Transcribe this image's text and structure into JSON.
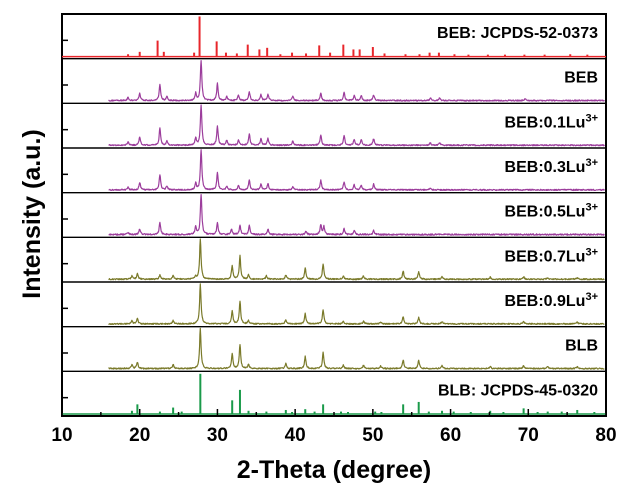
{
  "chart_data": {
    "type": "line",
    "title": "",
    "xlabel": "2-Theta (degree)",
    "ylabel": "Intensity (a.u.)",
    "xlim": [
      10,
      80
    ],
    "xticks": [
      10,
      20,
      30,
      40,
      50,
      60,
      70,
      80
    ],
    "y_tick_labels": "none",
    "grid": false,
    "legend": "none",
    "series": [
      {
        "label": "BEB: JCPDS-52-0373",
        "style": "reference-sticks",
        "color": "#e8262b",
        "peaks": [
          {
            "x": 18.5,
            "i": 0.06
          },
          {
            "x": 20.0,
            "i": 0.12
          },
          {
            "x": 22.3,
            "i": 0.4
          },
          {
            "x": 23.1,
            "i": 0.12
          },
          {
            "x": 27.0,
            "i": 0.1
          },
          {
            "x": 27.7,
            "i": 1.0
          },
          {
            "x": 29.9,
            "i": 0.38
          },
          {
            "x": 31.1,
            "i": 0.1
          },
          {
            "x": 32.5,
            "i": 0.08
          },
          {
            "x": 33.9,
            "i": 0.3
          },
          {
            "x": 35.4,
            "i": 0.18
          },
          {
            "x": 36.4,
            "i": 0.22
          },
          {
            "x": 38.1,
            "i": 0.06
          },
          {
            "x": 39.6,
            "i": 0.1
          },
          {
            "x": 41.4,
            "i": 0.08
          },
          {
            "x": 43.1,
            "i": 0.28
          },
          {
            "x": 44.5,
            "i": 0.1
          },
          {
            "x": 46.2,
            "i": 0.3
          },
          {
            "x": 47.5,
            "i": 0.18
          },
          {
            "x": 48.3,
            "i": 0.18
          },
          {
            "x": 50.0,
            "i": 0.24
          },
          {
            "x": 51.5,
            "i": 0.08
          },
          {
            "x": 54.2,
            "i": 0.06
          },
          {
            "x": 56.0,
            "i": 0.06
          },
          {
            "x": 57.3,
            "i": 0.1
          },
          {
            "x": 58.5,
            "i": 0.1
          },
          {
            "x": 60.5,
            "i": 0.06
          },
          {
            "x": 62.3,
            "i": 0.05
          },
          {
            "x": 64.8,
            "i": 0.05
          },
          {
            "x": 67.0,
            "i": 0.05
          },
          {
            "x": 69.5,
            "i": 0.05
          },
          {
            "x": 72.1,
            "i": 0.05
          },
          {
            "x": 75.4,
            "i": 0.06
          },
          {
            "x": 77.6,
            "i": 0.05
          }
        ]
      },
      {
        "label": "BEB",
        "style": "pattern",
        "color": "#9c3d9c",
        "noise": 0.03,
        "peaks": [
          {
            "x": 18.5,
            "i": 0.08
          },
          {
            "x": 20.0,
            "i": 0.18
          },
          {
            "x": 22.6,
            "i": 0.4
          },
          {
            "x": 23.5,
            "i": 0.1
          },
          {
            "x": 27.2,
            "i": 0.18
          },
          {
            "x": 27.9,
            "i": 1.0
          },
          {
            "x": 30.0,
            "i": 0.42
          },
          {
            "x": 31.2,
            "i": 0.1
          },
          {
            "x": 32.7,
            "i": 0.12
          },
          {
            "x": 34.1,
            "i": 0.22
          },
          {
            "x": 35.6,
            "i": 0.15
          },
          {
            "x": 36.5,
            "i": 0.16
          },
          {
            "x": 39.7,
            "i": 0.1
          },
          {
            "x": 43.3,
            "i": 0.18
          },
          {
            "x": 46.3,
            "i": 0.2
          },
          {
            "x": 47.6,
            "i": 0.12
          },
          {
            "x": 48.5,
            "i": 0.12
          },
          {
            "x": 50.1,
            "i": 0.14
          },
          {
            "x": 57.4,
            "i": 0.06
          },
          {
            "x": 58.6,
            "i": 0.06
          },
          {
            "x": 69.6,
            "i": 0.04
          }
        ]
      },
      {
        "label": "BEB:0.1Lu",
        "label_superscript": "3+",
        "style": "pattern",
        "color": "#9c3d9c",
        "noise": 0.03,
        "peaks": [
          {
            "x": 18.5,
            "i": 0.08
          },
          {
            "x": 20.0,
            "i": 0.2
          },
          {
            "x": 22.6,
            "i": 0.42
          },
          {
            "x": 23.5,
            "i": 0.1
          },
          {
            "x": 27.2,
            "i": 0.18
          },
          {
            "x": 27.9,
            "i": 1.0
          },
          {
            "x": 30.0,
            "i": 0.48
          },
          {
            "x": 31.2,
            "i": 0.12
          },
          {
            "x": 32.7,
            "i": 0.12
          },
          {
            "x": 34.1,
            "i": 0.28
          },
          {
            "x": 35.6,
            "i": 0.16
          },
          {
            "x": 36.5,
            "i": 0.18
          },
          {
            "x": 39.7,
            "i": 0.1
          },
          {
            "x": 43.3,
            "i": 0.26
          },
          {
            "x": 46.3,
            "i": 0.24
          },
          {
            "x": 47.6,
            "i": 0.14
          },
          {
            "x": 48.5,
            "i": 0.14
          },
          {
            "x": 50.1,
            "i": 0.16
          },
          {
            "x": 57.4,
            "i": 0.06
          },
          {
            "x": 58.6,
            "i": 0.06
          }
        ]
      },
      {
        "label": "BEB:0.3Lu",
        "label_superscript": "3+",
        "style": "pattern",
        "color": "#9c3d9c",
        "noise": 0.03,
        "peaks": [
          {
            "x": 18.5,
            "i": 0.06
          },
          {
            "x": 20.0,
            "i": 0.18
          },
          {
            "x": 22.6,
            "i": 0.38
          },
          {
            "x": 23.5,
            "i": 0.1
          },
          {
            "x": 27.2,
            "i": 0.16
          },
          {
            "x": 27.9,
            "i": 1.0
          },
          {
            "x": 30.0,
            "i": 0.42
          },
          {
            "x": 31.2,
            "i": 0.1
          },
          {
            "x": 32.7,
            "i": 0.1
          },
          {
            "x": 34.1,
            "i": 0.24
          },
          {
            "x": 35.6,
            "i": 0.14
          },
          {
            "x": 36.5,
            "i": 0.16
          },
          {
            "x": 39.7,
            "i": 0.08
          },
          {
            "x": 43.3,
            "i": 0.24
          },
          {
            "x": 46.3,
            "i": 0.2
          },
          {
            "x": 47.6,
            "i": 0.12
          },
          {
            "x": 48.5,
            "i": 0.12
          },
          {
            "x": 50.1,
            "i": 0.14
          },
          {
            "x": 57.4,
            "i": 0.05
          }
        ]
      },
      {
        "label": "BEB:0.5Lu",
        "label_superscript": "3+",
        "style": "pattern",
        "color": "#9c3d9c",
        "noise": 0.035,
        "peaks": [
          {
            "x": 18.5,
            "i": 0.06
          },
          {
            "x": 20.0,
            "i": 0.14
          },
          {
            "x": 22.6,
            "i": 0.3
          },
          {
            "x": 27.2,
            "i": 0.2
          },
          {
            "x": 27.9,
            "i": 1.0
          },
          {
            "x": 30.0,
            "i": 0.3
          },
          {
            "x": 31.8,
            "i": 0.14
          },
          {
            "x": 32.9,
            "i": 0.24
          },
          {
            "x": 34.1,
            "i": 0.22
          },
          {
            "x": 36.5,
            "i": 0.14
          },
          {
            "x": 41.4,
            "i": 0.08
          },
          {
            "x": 43.3,
            "i": 0.24
          },
          {
            "x": 43.7,
            "i": 0.2
          },
          {
            "x": 46.3,
            "i": 0.14
          },
          {
            "x": 47.6,
            "i": 0.1
          },
          {
            "x": 50.1,
            "i": 0.1
          }
        ]
      },
      {
        "label": "BEB:0.7Lu",
        "label_superscript": "3+",
        "style": "pattern",
        "color": "#7a7a2a",
        "noise": 0.03,
        "peaks": [
          {
            "x": 19.0,
            "i": 0.08
          },
          {
            "x": 19.7,
            "i": 0.14
          },
          {
            "x": 22.6,
            "i": 0.1
          },
          {
            "x": 24.3,
            "i": 0.1
          },
          {
            "x": 27.2,
            "i": 0.06
          },
          {
            "x": 27.8,
            "i": 1.0
          },
          {
            "x": 31.9,
            "i": 0.34
          },
          {
            "x": 32.9,
            "i": 0.58
          },
          {
            "x": 34.0,
            "i": 0.1
          },
          {
            "x": 36.3,
            "i": 0.08
          },
          {
            "x": 38.8,
            "i": 0.1
          },
          {
            "x": 41.3,
            "i": 0.28
          },
          {
            "x": 43.6,
            "i": 0.38
          },
          {
            "x": 46.2,
            "i": 0.08
          },
          {
            "x": 48.8,
            "i": 0.08
          },
          {
            "x": 53.9,
            "i": 0.2
          },
          {
            "x": 55.9,
            "i": 0.18
          },
          {
            "x": 58.9,
            "i": 0.06
          },
          {
            "x": 65.1,
            "i": 0.05
          },
          {
            "x": 69.4,
            "i": 0.06
          },
          {
            "x": 72.5,
            "i": 0.04
          },
          {
            "x": 76.3,
            "i": 0.04
          }
        ]
      },
      {
        "label": "BEB:0.9Lu",
        "label_superscript": "3+",
        "style": "pattern",
        "color": "#7a7a2a",
        "noise": 0.03,
        "peaks": [
          {
            "x": 19.0,
            "i": 0.08
          },
          {
            "x": 19.7,
            "i": 0.14
          },
          {
            "x": 24.3,
            "i": 0.08
          },
          {
            "x": 27.8,
            "i": 1.0
          },
          {
            "x": 31.9,
            "i": 0.32
          },
          {
            "x": 32.9,
            "i": 0.56
          },
          {
            "x": 34.0,
            "i": 0.08
          },
          {
            "x": 38.8,
            "i": 0.1
          },
          {
            "x": 41.3,
            "i": 0.26
          },
          {
            "x": 43.6,
            "i": 0.36
          },
          {
            "x": 46.2,
            "i": 0.06
          },
          {
            "x": 48.8,
            "i": 0.06
          },
          {
            "x": 51.0,
            "i": 0.05
          },
          {
            "x": 53.9,
            "i": 0.18
          },
          {
            "x": 55.9,
            "i": 0.16
          },
          {
            "x": 58.9,
            "i": 0.06
          },
          {
            "x": 69.4,
            "i": 0.05
          },
          {
            "x": 76.3,
            "i": 0.04
          }
        ]
      },
      {
        "label": "BLB",
        "style": "pattern",
        "color": "#7a7a2a",
        "noise": 0.03,
        "peaks": [
          {
            "x": 19.0,
            "i": 0.1
          },
          {
            "x": 19.7,
            "i": 0.16
          },
          {
            "x": 24.3,
            "i": 0.1
          },
          {
            "x": 27.8,
            "i": 1.0
          },
          {
            "x": 31.9,
            "i": 0.36
          },
          {
            "x": 32.9,
            "i": 0.6
          },
          {
            "x": 34.0,
            "i": 0.1
          },
          {
            "x": 38.8,
            "i": 0.12
          },
          {
            "x": 41.3,
            "i": 0.3
          },
          {
            "x": 43.6,
            "i": 0.4
          },
          {
            "x": 46.2,
            "i": 0.08
          },
          {
            "x": 48.8,
            "i": 0.08
          },
          {
            "x": 51.0,
            "i": 0.06
          },
          {
            "x": 53.9,
            "i": 0.22
          },
          {
            "x": 55.9,
            "i": 0.2
          },
          {
            "x": 58.9,
            "i": 0.08
          },
          {
            "x": 65.1,
            "i": 0.05
          },
          {
            "x": 69.4,
            "i": 0.07
          },
          {
            "x": 72.5,
            "i": 0.05
          },
          {
            "x": 76.3,
            "i": 0.05
          }
        ]
      },
      {
        "label": "BLB: JCPDS-45-0320",
        "style": "reference-sticks",
        "color": "#1a9a4a",
        "peaks": [
          {
            "x": 19.0,
            "i": 0.08
          },
          {
            "x": 19.7,
            "i": 0.24
          },
          {
            "x": 22.6,
            "i": 0.06
          },
          {
            "x": 24.3,
            "i": 0.16
          },
          {
            "x": 25.4,
            "i": 0.06
          },
          {
            "x": 27.8,
            "i": 1.0
          },
          {
            "x": 31.9,
            "i": 0.34
          },
          {
            "x": 32.9,
            "i": 0.6
          },
          {
            "x": 34.0,
            "i": 0.08
          },
          {
            "x": 36.3,
            "i": 0.06
          },
          {
            "x": 38.8,
            "i": 0.1
          },
          {
            "x": 39.6,
            "i": 0.05
          },
          {
            "x": 41.3,
            "i": 0.12
          },
          {
            "x": 42.5,
            "i": 0.06
          },
          {
            "x": 43.6,
            "i": 0.24
          },
          {
            "x": 45.9,
            "i": 0.06
          },
          {
            "x": 46.8,
            "i": 0.05
          },
          {
            "x": 50.3,
            "i": 0.06
          },
          {
            "x": 51.1,
            "i": 0.05
          },
          {
            "x": 53.9,
            "i": 0.24
          },
          {
            "x": 55.9,
            "i": 0.3
          },
          {
            "x": 57.2,
            "i": 0.06
          },
          {
            "x": 58.9,
            "i": 0.08
          },
          {
            "x": 60.4,
            "i": 0.06
          },
          {
            "x": 62.6,
            "i": 0.05
          },
          {
            "x": 65.1,
            "i": 0.08
          },
          {
            "x": 66.8,
            "i": 0.05
          },
          {
            "x": 69.4,
            "i": 0.14
          },
          {
            "x": 71.2,
            "i": 0.05
          },
          {
            "x": 72.5,
            "i": 0.06
          },
          {
            "x": 74.3,
            "i": 0.06
          },
          {
            "x": 76.3,
            "i": 0.1
          },
          {
            "x": 78.5,
            "i": 0.05
          }
        ]
      }
    ]
  }
}
